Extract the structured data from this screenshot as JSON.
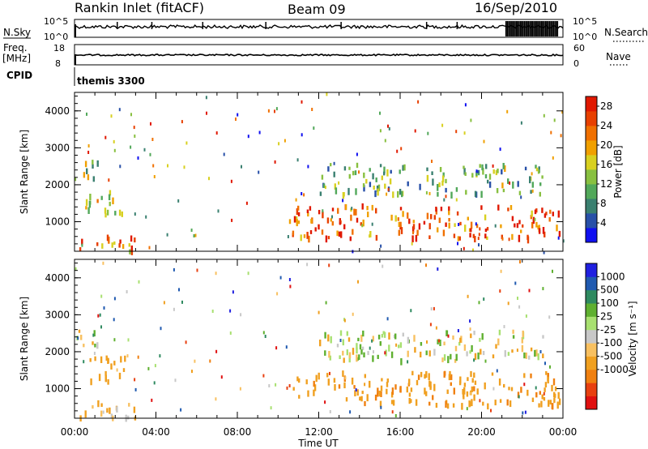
{
  "header": {
    "station": "Rankin Inlet (fitACF)",
    "beam": "Beam 09",
    "date": "16/Sep/2010"
  },
  "chart_data": [
    {
      "type": "line",
      "name": "nsky-nsearch",
      "left_label": "N.Sky",
      "right_label": "N.Search",
      "left_ticks": [
        "10^5",
        "10^0"
      ],
      "right_ticks": [
        "10^5",
        "10^0"
      ],
      "x": [
        "00:00",
        "24:00"
      ],
      "nsky_typical": "10^3-10^4",
      "nsearch_late_hours": [
        21.2,
        23.8
      ]
    },
    {
      "type": "line",
      "name": "freq-nave",
      "left_label_top": "Freq.",
      "left_label_unit": "[MHz]",
      "right_label": "Nave",
      "left_ticks": [
        "18",
        "8"
      ],
      "right_ticks": [
        "60",
        "0"
      ],
      "freq_mhz": 12
    },
    {
      "type": "table",
      "name": "cpid",
      "label": "CPID",
      "program": "themis 3300"
    },
    {
      "type": "heatmap",
      "name": "power",
      "ylabel": "Slant Range [km]",
      "xlabel": "",
      "yticks": [
        "1000",
        "2000",
        "3000",
        "4000"
      ],
      "ylim": [
        200,
        4500
      ],
      "xlim_hours": [
        0,
        24
      ],
      "colorbar_label": "Power [dB]",
      "colorbar_ticks": [
        "4",
        "8",
        "12",
        "16",
        "20",
        "24",
        "28"
      ],
      "colorbar_range": [
        0,
        30
      ],
      "colorbar_colors": [
        "#1010f0",
        "#2850a8",
        "#3a8070",
        "#52a85a",
        "#88c040",
        "#d8d020",
        "#f0a000",
        "#f07000",
        "#e84000",
        "#e01800"
      ],
      "echo_regions": [
        {
          "t": [
            0.0,
            1.2
          ],
          "r": [
            2200,
            2700
          ],
          "level": 0.4
        },
        {
          "t": [
            0.0,
            3.0
          ],
          "r": [
            250,
            700
          ],
          "level": 0.75
        },
        {
          "t": [
            0.5,
            2.5
          ],
          "r": [
            1200,
            1900
          ],
          "level": 0.55
        },
        {
          "t": [
            10.5,
            23.8
          ],
          "r": [
            600,
            1500
          ],
          "level": 0.85
        },
        {
          "t": [
            12.0,
            23.0
          ],
          "r": [
            1800,
            2600
          ],
          "level": 0.35
        }
      ]
    },
    {
      "type": "heatmap",
      "name": "velocity",
      "ylabel": "Slant Range [km]",
      "xlabel": "Time UT",
      "yticks": [
        "1000",
        "2000",
        "3000",
        "4000"
      ],
      "ylim": [
        200,
        4500
      ],
      "xlim_hours": [
        0,
        24
      ],
      "xticks": [
        "00:00",
        "04:00",
        "08:00",
        "12:00",
        "16:00",
        "20:00",
        "00:00"
      ],
      "colorbar_label": "Velocity [m s⁻¹]",
      "colorbar_ticks": [
        "1000",
        "500",
        "100",
        "25",
        "-25",
        "-100",
        "-500",
        "-1000"
      ],
      "colorbar_colors": [
        "#2020e0",
        "#205ab0",
        "#2f8a60",
        "#5fb030",
        "#a8e070",
        "#c8c8c8",
        "#f8c060",
        "#f0a020",
        "#f08010",
        "#e84010",
        "#e01010"
      ],
      "echo_regions": [
        {
          "t": [
            0.0,
            1.2
          ],
          "r": [
            2200,
            2700
          ],
          "vel": -5
        },
        {
          "t": [
            0.0,
            3.0
          ],
          "r": [
            250,
            700
          ],
          "vel": -200
        },
        {
          "t": [
            0.5,
            2.5
          ],
          "r": [
            1200,
            1900
          ],
          "vel": -300
        },
        {
          "t": [
            10.5,
            23.8
          ],
          "r": [
            600,
            1500
          ],
          "vel": -400
        },
        {
          "t": [
            12.0,
            23.0
          ],
          "r": [
            1800,
            2600
          ],
          "vel": 50
        }
      ]
    }
  ]
}
